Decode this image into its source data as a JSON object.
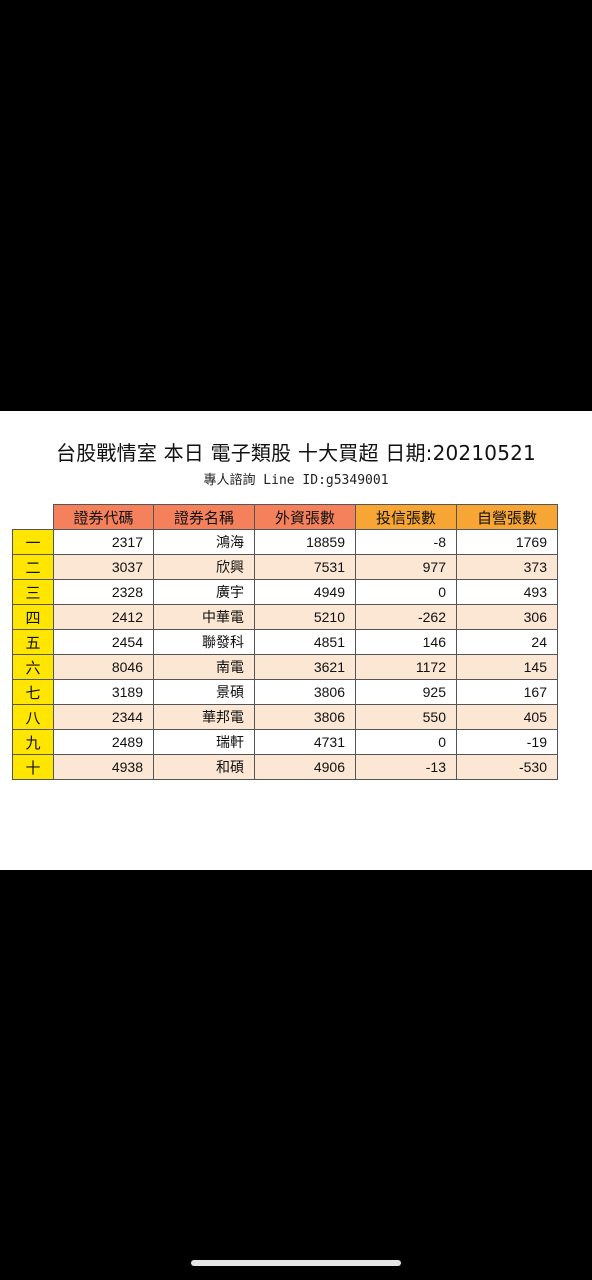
{
  "title": "台股戰情室 本日 電子類股 十大買超 日期:20210521",
  "subtitle": "專人諮詢 Line ID:g5349001",
  "table": {
    "headers": [
      "證券代碼",
      "證券名稱",
      "外資張數",
      "投信張數",
      "自營張數"
    ],
    "rows": [
      {
        "rank": "一",
        "code": "2317",
        "name": "鴻海",
        "foreign": "18859",
        "trust": "-8",
        "dealer": "1769"
      },
      {
        "rank": "二",
        "code": "3037",
        "name": "欣興",
        "foreign": "7531",
        "trust": "977",
        "dealer": "373"
      },
      {
        "rank": "三",
        "code": "2328",
        "name": "廣宇",
        "foreign": "4949",
        "trust": "0",
        "dealer": "493"
      },
      {
        "rank": "四",
        "code": "2412",
        "name": "中華電",
        "foreign": "5210",
        "trust": "-262",
        "dealer": "306"
      },
      {
        "rank": "五",
        "code": "2454",
        "name": "聯發科",
        "foreign": "4851",
        "trust": "146",
        "dealer": "24"
      },
      {
        "rank": "六",
        "code": "8046",
        "name": "南電",
        "foreign": "3621",
        "trust": "1172",
        "dealer": "145"
      },
      {
        "rank": "七",
        "code": "3189",
        "name": "景碩",
        "foreign": "3806",
        "trust": "925",
        "dealer": "167"
      },
      {
        "rank": "八",
        "code": "2344",
        "name": "華邦電",
        "foreign": "3806",
        "trust": "550",
        "dealer": "405"
      },
      {
        "rank": "九",
        "code": "2489",
        "name": "瑞軒",
        "foreign": "4731",
        "trust": "0",
        "dealer": "-19"
      },
      {
        "rank": "十",
        "code": "4938",
        "name": "和碩",
        "foreign": "4906",
        "trust": "-13",
        "dealer": "-530"
      }
    ]
  },
  "colors": {
    "header_primary": "#f4815c",
    "header_secondary": "#f7a534",
    "rank_cell": "#ffe600",
    "row_alt": "#fbe7d3",
    "background": "#000000"
  }
}
